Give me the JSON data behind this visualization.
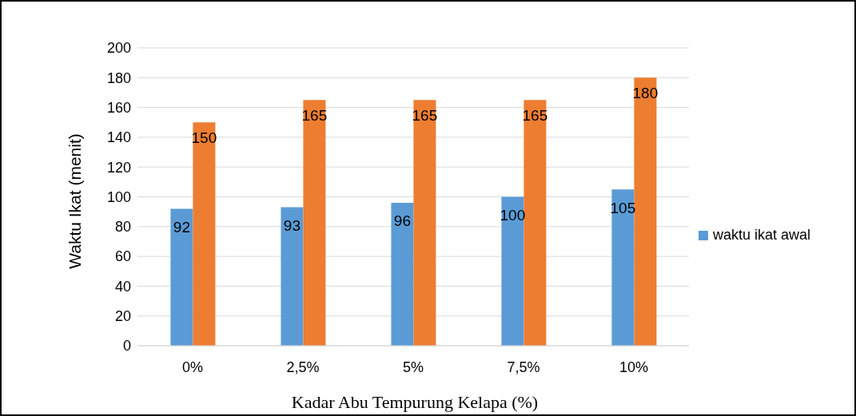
{
  "chart_data": {
    "type": "bar",
    "xlabel": "Kadar Abu Tempurung Kelapa (%)",
    "ylabel": "Waktu Ikat (menit)",
    "categories": [
      "0%",
      "2,5%",
      "5%",
      "7,5%",
      "10%"
    ],
    "series": [
      {
        "name": "waktu ikat awal",
        "color": "#5b9bd5",
        "values": [
          92,
          93,
          96,
          100,
          105
        ]
      },
      {
        "color": "#ed7d31",
        "values": [
          150,
          165,
          165,
          165,
          180
        ]
      }
    ],
    "ylim": [
      0,
      200
    ],
    "yticks": [
      0,
      20,
      40,
      60,
      80,
      100,
      120,
      140,
      160,
      180,
      200
    ],
    "grid": "y",
    "legend": "right",
    "data_labels": true
  }
}
